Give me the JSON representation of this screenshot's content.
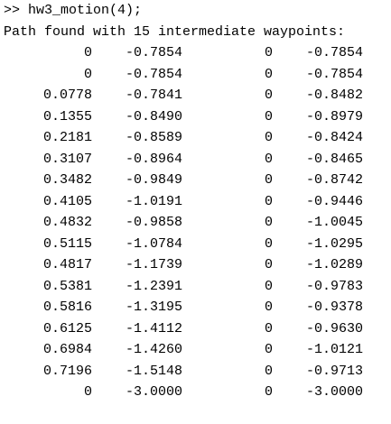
{
  "console": {
    "prompt": ">>",
    "command": "hw3_motion(4);",
    "message": "Path found with 15 intermediate waypoints:",
    "rows": [
      [
        "0",
        "-0.7854",
        "0",
        "-0.7854"
      ],
      [
        "0",
        "-0.7854",
        "0",
        "-0.7854"
      ],
      [
        "0.0778",
        "-0.7841",
        "0",
        "-0.8482"
      ],
      [
        "0.1355",
        "-0.8490",
        "0",
        "-0.8979"
      ],
      [
        "0.2181",
        "-0.8589",
        "0",
        "-0.8424"
      ],
      [
        "0.3107",
        "-0.8964",
        "0",
        "-0.8465"
      ],
      [
        "0.3482",
        "-0.9849",
        "0",
        "-0.8742"
      ],
      [
        "0.4105",
        "-1.0191",
        "0",
        "-0.9446"
      ],
      [
        "0.4832",
        "-0.9858",
        "0",
        "-1.0045"
      ],
      [
        "0.5115",
        "-1.0784",
        "0",
        "-1.0295"
      ],
      [
        "0.4817",
        "-1.1739",
        "0",
        "-1.0289"
      ],
      [
        "0.5381",
        "-1.2391",
        "0",
        "-0.9783"
      ],
      [
        "0.5816",
        "-1.3195",
        "0",
        "-0.9378"
      ],
      [
        "0.6125",
        "-1.4112",
        "0",
        "-0.9630"
      ],
      [
        "0.6984",
        "-1.4260",
        "0",
        "-1.0121"
      ],
      [
        "0.7196",
        "-1.5148",
        "0",
        "-0.9713"
      ],
      [
        "0",
        "-3.0000",
        "0",
        "-3.0000"
      ]
    ]
  }
}
